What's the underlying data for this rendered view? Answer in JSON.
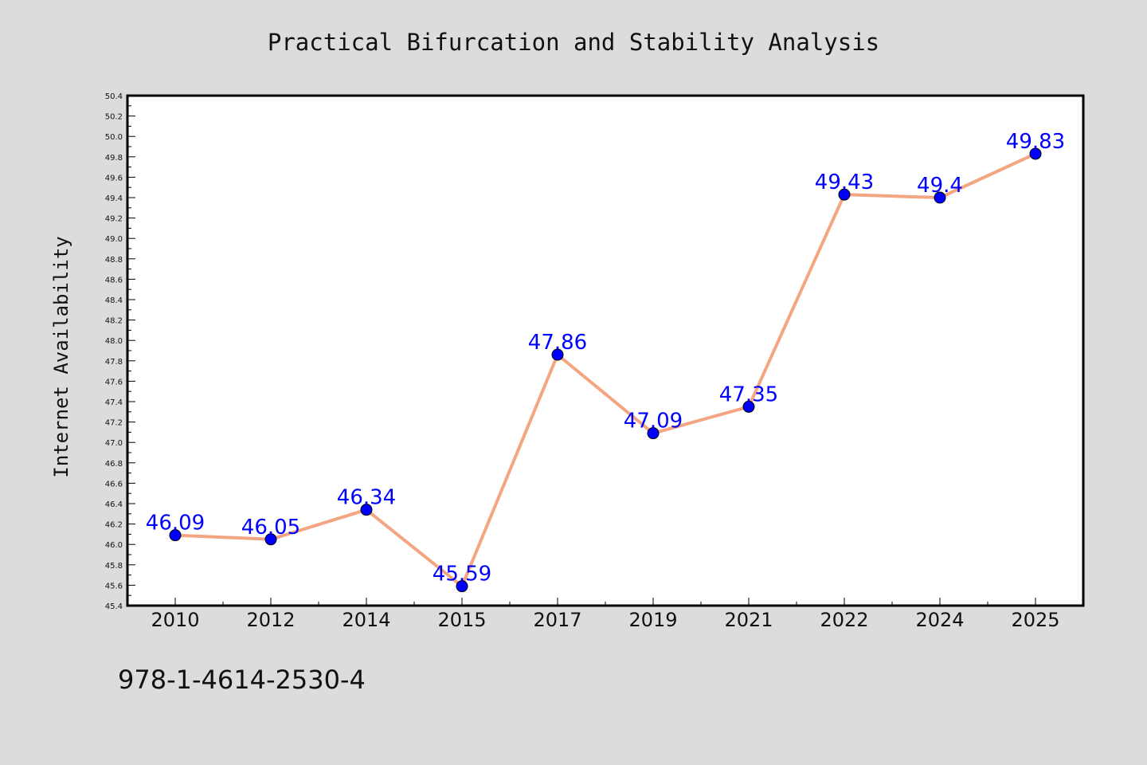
{
  "chart_data": {
    "type": "line",
    "title": "Practical Bifurcation and Stability Analysis",
    "xlabel": "",
    "ylabel": "Internet Availability",
    "categories": [
      "2010",
      "2012",
      "2014",
      "2015",
      "2017",
      "2019",
      "2021",
      "2022",
      "2024",
      "2025"
    ],
    "series": [
      {
        "values": [
          46.09,
          46.05,
          46.34,
          45.59,
          47.86,
          47.09,
          47.35,
          49.43,
          49.4,
          49.83
        ],
        "labels": [
          "46.09",
          "46.05",
          "46.34",
          "45.59",
          "47.86",
          "47.09",
          "47.35",
          "49.43",
          "49.4",
          "49.83"
        ],
        "line_color": "#f4a582",
        "marker_color": "#0000ff"
      }
    ],
    "ylim": [
      45.4,
      50.4
    ],
    "yticks": [
      "45.4",
      "45.6",
      "45.8",
      "46.0",
      "46.2",
      "46.4",
      "46.6",
      "46.8",
      "47.0",
      "47.2",
      "47.4",
      "47.6",
      "47.8",
      "48.0",
      "48.2",
      "48.4",
      "48.6",
      "48.8",
      "49.0",
      "49.2",
      "49.4",
      "49.6",
      "49.8",
      "50.0",
      "50.2",
      "50.4"
    ],
    "grid": false,
    "legend": "none"
  },
  "footnote": "978-1-4614-2530-4",
  "colors": {
    "background": "#dcdcdc",
    "plot_background": "#ffffff",
    "line": "#f4a582",
    "marker": "#0000ff",
    "data_label": "#0000ff"
  }
}
